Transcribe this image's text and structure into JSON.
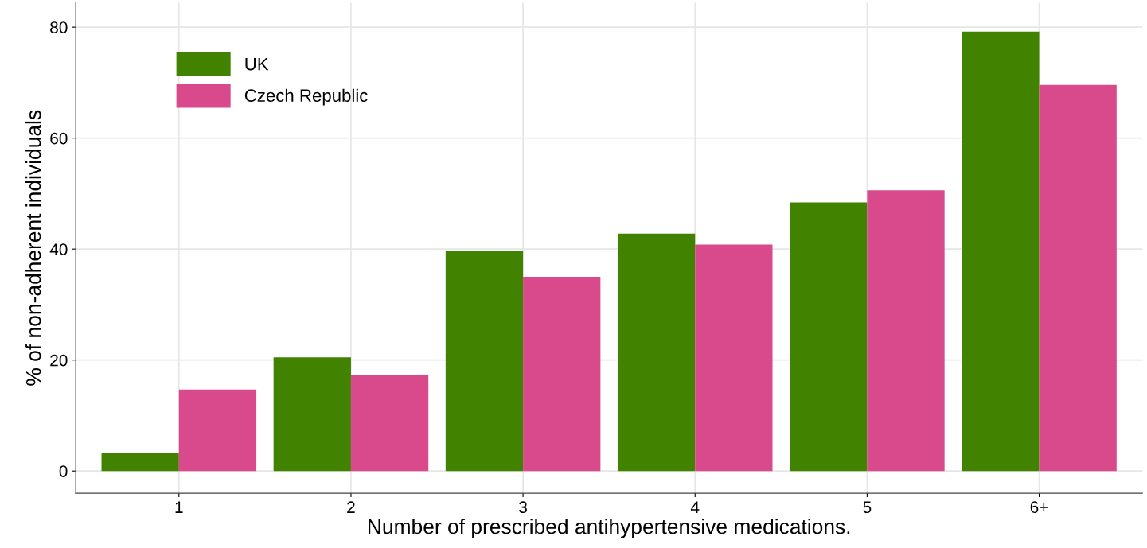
{
  "chart_data": {
    "type": "bar",
    "xlabel": "Number of prescribed antihypertensive medications.",
    "ylabel": "% of non-adherent individuals",
    "categories": [
      "1",
      "2",
      "3",
      "4",
      "5",
      "6+"
    ],
    "series": [
      {
        "name": "UK",
        "color": "#418200",
        "values": [
          3.3,
          20.5,
          39.7,
          42.8,
          48.4,
          79.2
        ]
      },
      {
        "name": "Czech Republic",
        "color": "#d94a8c",
        "values": [
          14.7,
          17.3,
          35.0,
          40.8,
          50.6,
          69.6
        ]
      }
    ],
    "ylim": [
      -4,
      84.4
    ],
    "yticks": [
      0,
      20,
      40,
      60,
      80
    ],
    "grid": true,
    "legend": "top left"
  }
}
